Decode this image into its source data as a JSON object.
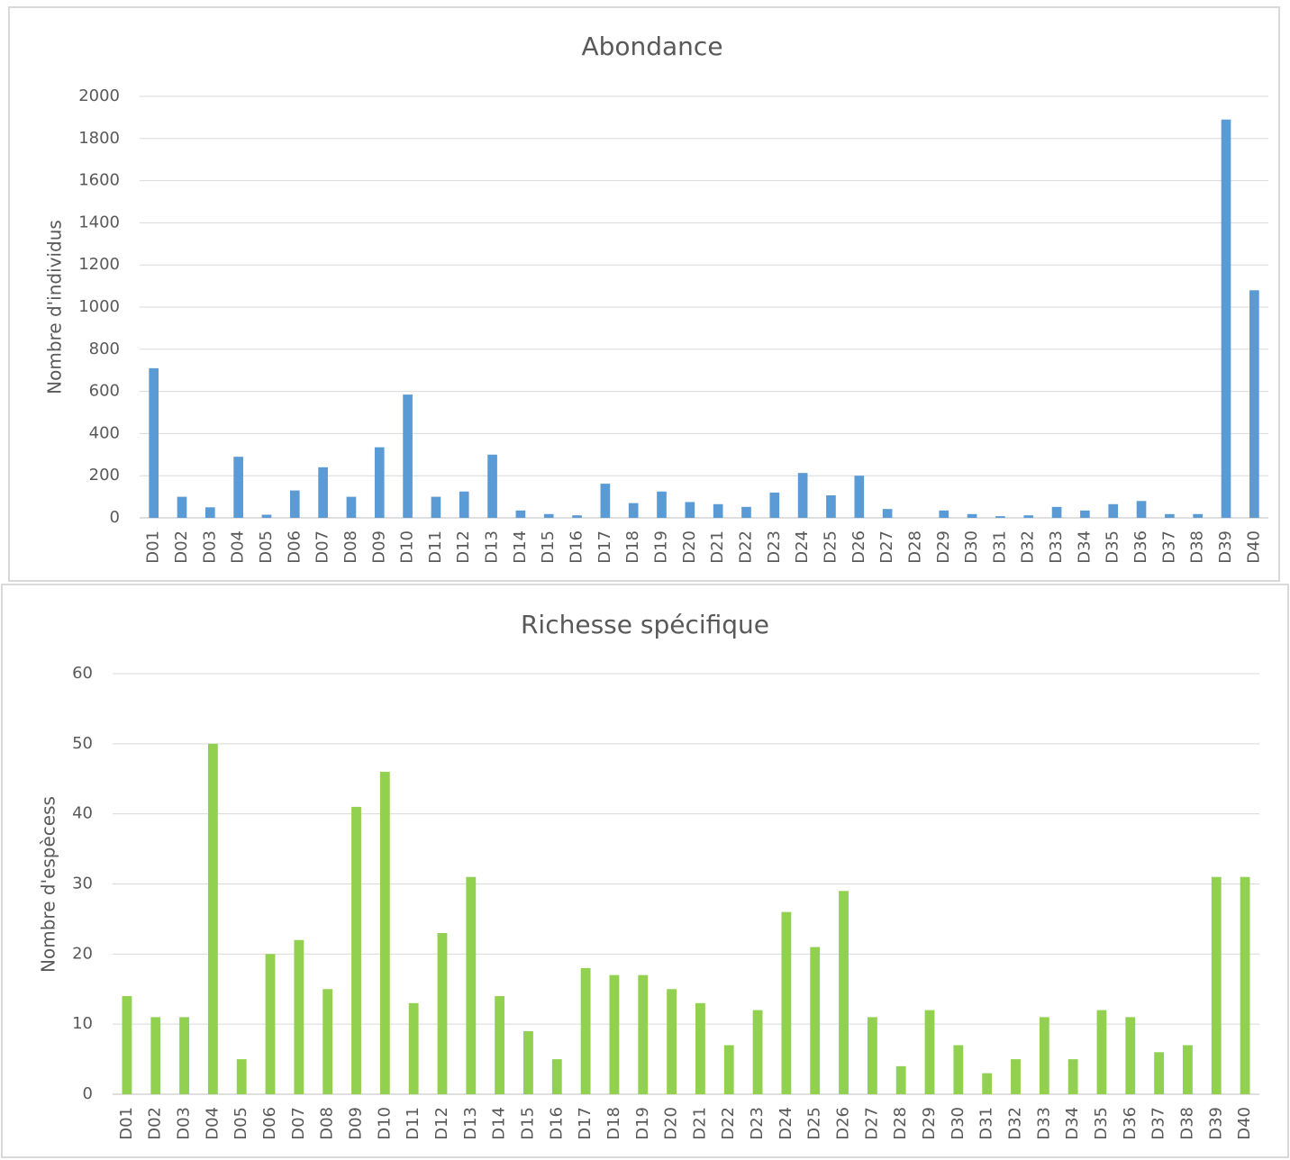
{
  "chart_data": [
    {
      "type": "bar",
      "title": "Abondance",
      "y_label": "Nombre d'individus",
      "categories": [
        "D01",
        "D02",
        "D03",
        "D04",
        "D05",
        "D06",
        "D07",
        "D08",
        "D09",
        "D10",
        "D11",
        "D12",
        "D13",
        "D14",
        "D15",
        "D16",
        "D17",
        "D18",
        "D19",
        "D20",
        "D21",
        "D22",
        "D23",
        "D24",
        "D25",
        "D26",
        "D27",
        "D28",
        "D29",
        "D30",
        "D31",
        "D32",
        "D33",
        "D34",
        "D35",
        "D36",
        "D37",
        "D38",
        "D39",
        "D40"
      ],
      "values": [
        710,
        100,
        50,
        290,
        15,
        130,
        240,
        100,
        335,
        585,
        100,
        125,
        300,
        35,
        18,
        12,
        162,
        70,
        125,
        75,
        65,
        52,
        120,
        213,
        107,
        200,
        42,
        0,
        35,
        18,
        8,
        12,
        52,
        35,
        65,
        80,
        18,
        18,
        1890,
        1080
      ],
      "color": "#5b9bd5",
      "ylim": [
        0,
        2000
      ],
      "yticks": [
        0,
        200,
        400,
        600,
        800,
        1000,
        1200,
        1400,
        1600,
        1800,
        2000
      ],
      "grid": true
    },
    {
      "type": "bar",
      "title": "Richesse spécifique",
      "y_label": "Nombre d'espècess",
      "categories": [
        "D01",
        "D02",
        "D03",
        "D04",
        "D05",
        "D06",
        "D07",
        "D08",
        "D09",
        "D10",
        "D11",
        "D12",
        "D13",
        "D14",
        "D15",
        "D16",
        "D17",
        "D18",
        "D19",
        "D20",
        "D21",
        "D22",
        "D23",
        "D24",
        "D25",
        "D26",
        "D27",
        "D28",
        "D29",
        "D30",
        "D31",
        "D32",
        "D33",
        "D34",
        "D35",
        "D36",
        "D37",
        "D38",
        "D39",
        "D40"
      ],
      "values": [
        14,
        11,
        11,
        50,
        5,
        20,
        22,
        15,
        41,
        46,
        13,
        23,
        31,
        14,
        9,
        5,
        18,
        17,
        17,
        15,
        13,
        7,
        12,
        26,
        21,
        29,
        11,
        4,
        12,
        7,
        3,
        5,
        11,
        5,
        12,
        11,
        6,
        7,
        31,
        31
      ],
      "color": "#92d050",
      "ylim": [
        0,
        60
      ],
      "yticks": [
        0,
        10,
        20,
        30,
        40,
        50,
        60
      ],
      "grid": true
    }
  ]
}
